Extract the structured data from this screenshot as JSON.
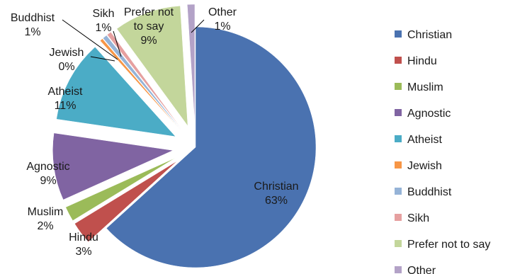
{
  "chart_data": {
    "type": "pie",
    "exploded": true,
    "legend_position": "right",
    "slices": [
      {
        "name": "Christian",
        "value": 63,
        "label": "Christian",
        "pct": "63%",
        "color": "#4A72B0"
      },
      {
        "name": "Hindu",
        "value": 3,
        "label": "Hindu",
        "pct": "3%",
        "color": "#C0504D"
      },
      {
        "name": "Muslim",
        "value": 2,
        "label": "Muslim",
        "pct": "2%",
        "color": "#9BBB59"
      },
      {
        "name": "Agnostic",
        "value": 9,
        "label": "Agnostic",
        "pct": "9%",
        "color": "#8064A2"
      },
      {
        "name": "Atheist",
        "value": 11,
        "label": "Atheist",
        "pct": "11%",
        "color": "#4BACC6"
      },
      {
        "name": "Jewish",
        "value": 0.4,
        "label": "Jewish",
        "pct": "0%",
        "color": "#F79646"
      },
      {
        "name": "Buddhist",
        "value": 0.6,
        "label": "Buddhist",
        "pct": "1%",
        "color": "#95B3D7"
      },
      {
        "name": "Sikh",
        "value": 0.6,
        "label": "Sikh",
        "pct": "1%",
        "color": "#E6A0A0"
      },
      {
        "name": "Prefer not to say",
        "value": 9,
        "label": "Prefer not to say",
        "pct": "9%",
        "color": "#C3D69B"
      },
      {
        "name": "Other",
        "value": 1,
        "label": "Other",
        "pct": "1%",
        "color": "#B3A2C7"
      }
    ],
    "legend": [
      "Christian",
      "Hindu",
      "Muslim",
      "Agnostic",
      "Atheist",
      "Jewish",
      "Buddhist",
      "Sikh",
      "Prefer not to say",
      "Other"
    ]
  }
}
